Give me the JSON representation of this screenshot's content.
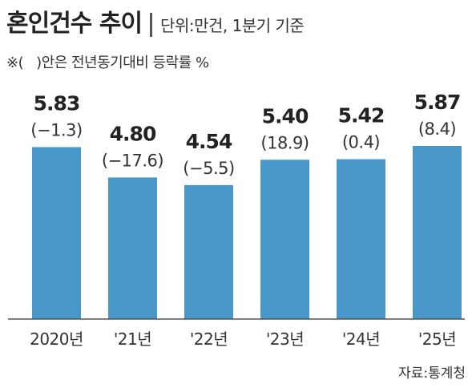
{
  "header": {
    "title": "혼인건수 추이",
    "unit": "단위:만건, 1분기 기준"
  },
  "note": {
    "symbol": "※(",
    "text": ")안은 전년동기대비 등락률 %"
  },
  "source": "자료:통계청",
  "colors": {
    "bar": "#4a98c9",
    "axis": "#555555",
    "text": "#222222"
  },
  "chart_data": {
    "type": "bar",
    "title": "혼인건수 추이",
    "unit": "단위:만건, 1분기 기준",
    "categories": [
      "2020년",
      "'21년",
      "'22년",
      "'23년",
      "'24년",
      "'25년"
    ],
    "values": [
      5.83,
      4.8,
      4.54,
      5.4,
      5.42,
      5.87
    ],
    "value_labels": [
      "5.83",
      "4.80",
      "4.54",
      "5.40",
      "5.42",
      "5.87"
    ],
    "change_labels": [
      "(−1.3)",
      "(−17.6)",
      "(−5.5)",
      "(18.9)",
      "(0.4)",
      "(8.4)"
    ],
    "ylim": [
      0,
      5.87
    ],
    "grid": false,
    "legend": "none"
  }
}
